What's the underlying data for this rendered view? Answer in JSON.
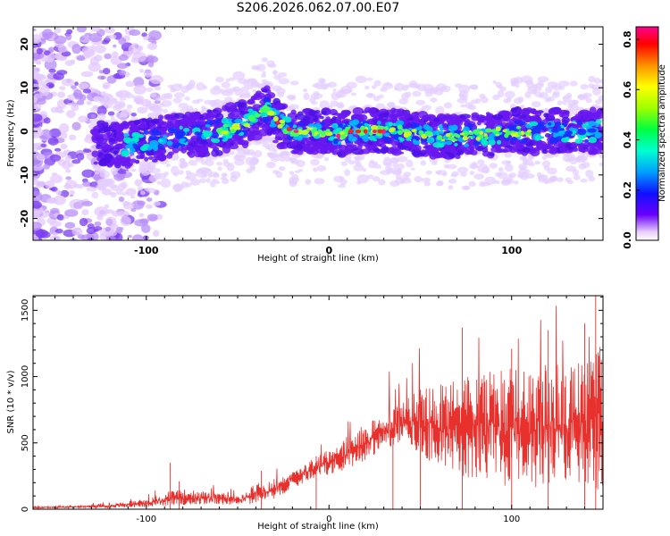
{
  "title": "S206.2026.062.07.00.E07",
  "chart_data": [
    {
      "type": "heatmap",
      "xlabel": "Height of straight line (km)",
      "ylabel": "Frequency (Hz)",
      "xlim": [
        -162,
        150
      ],
      "ylim": [
        -25,
        24
      ],
      "xticks": [
        -100,
        0,
        100
      ],
      "yticks": [
        20,
        10,
        0,
        -10,
        -20
      ],
      "colorbar": {
        "label": "Normalized spectral amplitude",
        "range": [
          0.0,
          0.85
        ],
        "ticks": [
          0.0,
          0.2,
          0.4,
          0.6,
          0.8
        ]
      },
      "ridge": {
        "x": [
          -125,
          -110,
          -100,
          -80,
          -60,
          -45,
          -38,
          -34,
          -28,
          -20,
          -12,
          -5,
          0,
          5,
          10,
          20,
          30,
          40,
          60,
          80,
          100,
          120,
          148
        ],
        "freq": [
          -3,
          -3,
          -2,
          -1,
          0,
          2,
          4,
          5,
          2,
          0,
          0,
          0,
          0,
          -1,
          0,
          0,
          0,
          0,
          -1,
          -1,
          0,
          0,
          0
        ]
      }
    },
    {
      "type": "line",
      "xlabel": "Height of straight line (km)",
      "ylabel": "SNR (10 * v/v)",
      "xlim": [
        -162,
        150
      ],
      "ylim": [
        0,
        1610
      ],
      "xticks": [
        -100,
        0,
        100
      ],
      "yticks": [
        0,
        500,
        1000,
        1500
      ],
      "color": "#e8302c",
      "envelope": {
        "x": [
          -162,
          -140,
          -120,
          -100,
          -90,
          -80,
          -60,
          -50,
          -40,
          -30,
          -20,
          -10,
          0,
          10,
          20,
          30,
          40,
          50,
          60,
          70,
          80,
          90,
          100,
          110,
          120,
          130,
          140,
          150
        ],
        "upper": [
          20,
          25,
          40,
          80,
          130,
          150,
          130,
          100,
          200,
          230,
          300,
          380,
          450,
          550,
          650,
          720,
          820,
          900,
          950,
          1000,
          1030,
          1050,
          1070,
          1080,
          1090,
          1110,
          1150,
          1250
        ],
        "lower": [
          5,
          8,
          10,
          15,
          20,
          30,
          35,
          30,
          40,
          80,
          150,
          230,
          260,
          300,
          370,
          450,
          500,
          400,
          300,
          250,
          200,
          180,
          170,
          160,
          170,
          160,
          150,
          150
        ]
      }
    }
  ]
}
